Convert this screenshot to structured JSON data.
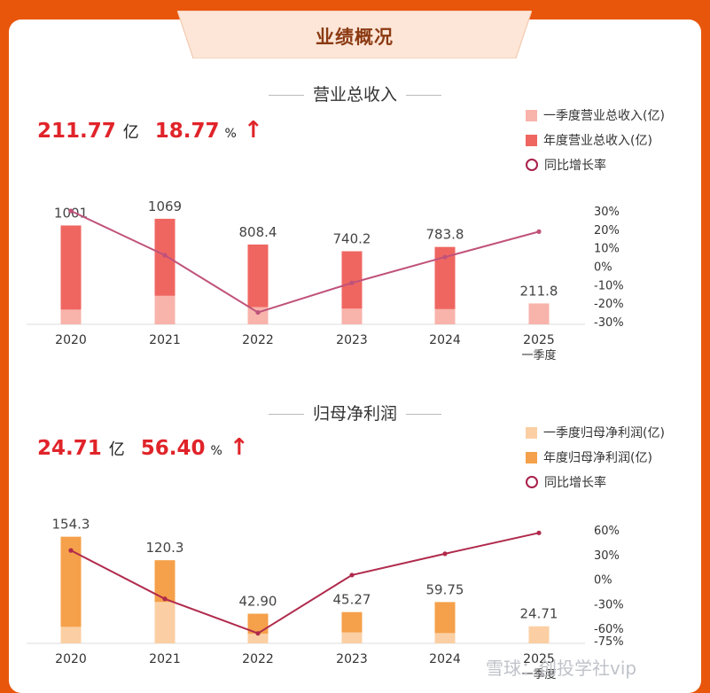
{
  "banner_title": "业绩概况",
  "watermark": "雪球：创投学社vip",
  "revenue": {
    "section_title": "营业总收入",
    "kpi_value": "211.77",
    "kpi_unit": "亿",
    "kpi_growth": "18.77",
    "kpi_growth_unit": "%",
    "kpi_arrow": "↑",
    "legend": [
      "一季度营业总收入(亿)",
      "年度营业总收入(亿)",
      "同比增长率"
    ],
    "colors": {
      "q1": "#f8b3ab",
      "annual": "#ef6661",
      "line": "#c0527a"
    }
  },
  "profit": {
    "section_title": "归母净利润",
    "kpi_value": "24.71",
    "kpi_unit": "亿",
    "kpi_growth": "56.40",
    "kpi_growth_unit": "%",
    "kpi_arrow": "↑",
    "legend": [
      "一季度归母净利润(亿)",
      "年度归母净利润(亿)",
      "同比增长率"
    ],
    "colors": {
      "q1": "#fbcfa3",
      "annual": "#f5a04a",
      "line": "#b02a4c"
    }
  },
  "chart_data": [
    {
      "type": "bar",
      "title": "营业总收入",
      "categories": [
        "2020",
        "2021",
        "2022",
        "2023",
        "2024",
        "2025\n一季度"
      ],
      "series": [
        {
          "name": "一季度营业总收入(亿)",
          "values": [
            150,
            290,
            175,
            160,
            155,
            211.8
          ]
        },
        {
          "name": "年度营业总收入(亿)",
          "values": [
            1001,
            1069,
            808.4,
            740.2,
            783.8,
            null
          ]
        },
        {
          "name": "同比增长率",
          "values": [
            30,
            6,
            -25,
            -9,
            5,
            18.77
          ],
          "axis": "right"
        }
      ],
      "bar_labels": [
        "1001",
        "1069",
        "808.4",
        "740.2",
        "783.8",
        "211.8"
      ],
      "right_axis_ticks": [
        "30%",
        "20%",
        "10%",
        "0%",
        "-10%",
        "-20%",
        "-30%"
      ],
      "ylim_left": [
        0,
        1400
      ],
      "ylim_right": [
        -30,
        30
      ]
    },
    {
      "type": "bar",
      "title": "归母净利润",
      "categories": [
        "2020",
        "2021",
        "2022",
        "2023",
        "2024",
        "2025\n一季度"
      ],
      "series": [
        {
          "name": "一季度归母净利润(亿)",
          "values": [
            24,
            60,
            14,
            16,
            15,
            24.71
          ]
        },
        {
          "name": "年度归母净利润(亿)",
          "values": [
            154.3,
            120.3,
            42.9,
            45.27,
            59.75,
            null
          ]
        },
        {
          "name": "同比增长率",
          "values": [
            35,
            -24,
            -66,
            5,
            31,
            56.4
          ],
          "axis": "right"
        }
      ],
      "bar_labels": [
        "154.3",
        "120.3",
        "42.90",
        "45.27",
        "59.75",
        "24.71"
      ],
      "right_axis_ticks": [
        "60%",
        "30%",
        "0%",
        "-30%",
        "-60%",
        "-75%"
      ],
      "right_axis_values": [
        60,
        30,
        0,
        -30,
        -60,
        -75
      ],
      "ylim_left": [
        0,
        200
      ],
      "ylim_right": [
        -75,
        60
      ]
    }
  ]
}
